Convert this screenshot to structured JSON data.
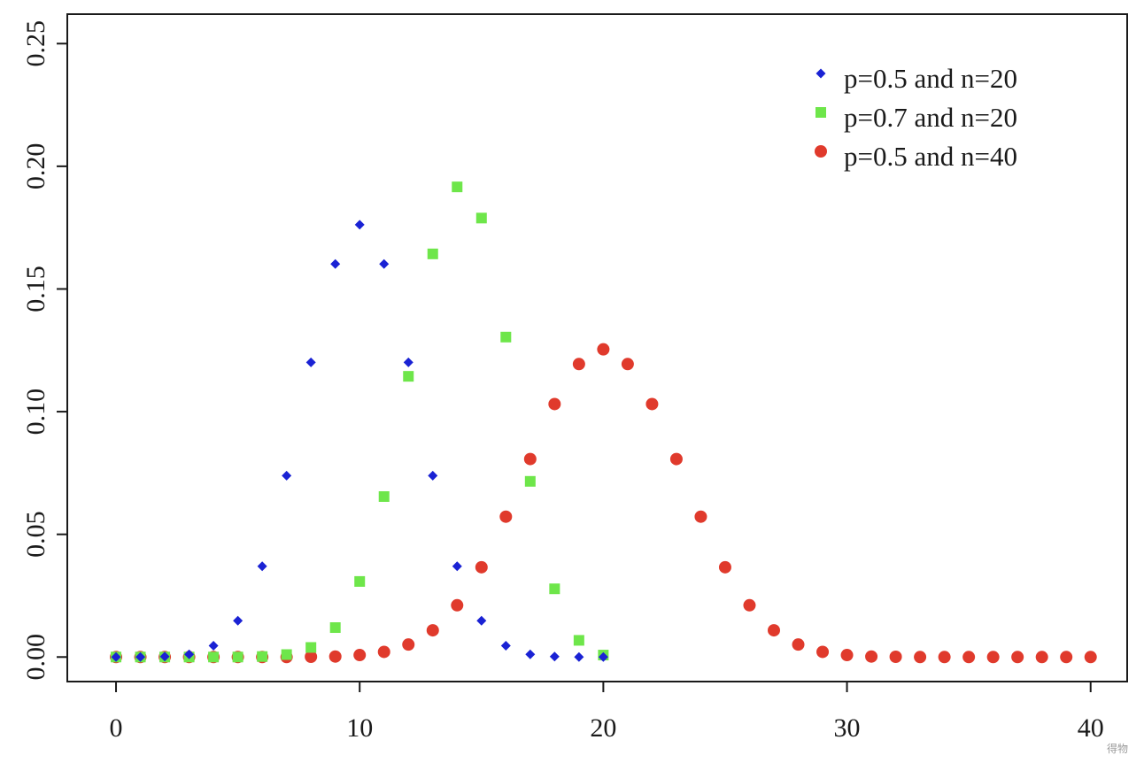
{
  "chart_data": {
    "type": "scatter",
    "title": "",
    "xlabel": "",
    "ylabel": "",
    "xlim": [
      -2,
      41.5
    ],
    "ylim": [
      -0.01,
      0.262
    ],
    "x_ticks": [
      0,
      10,
      20,
      30,
      40
    ],
    "x_tick_labels": [
      "0",
      "10",
      "20",
      "30",
      "40"
    ],
    "y_ticks": [
      0.0,
      0.05,
      0.1,
      0.15,
      0.2,
      0.25
    ],
    "y_tick_labels": [
      "0.00",
      "0.05",
      "0.10",
      "0.15",
      "0.20",
      "0.25"
    ],
    "grid": false,
    "legend_position": "top-right",
    "series": [
      {
        "name": "p=0.5 and n=20",
        "marker": "diamond",
        "color": "#1a22d4",
        "x": [
          0,
          1,
          2,
          3,
          4,
          5,
          6,
          7,
          8,
          9,
          10,
          11,
          12,
          13,
          14,
          15,
          16,
          17,
          18,
          19,
          20
        ],
        "y": [
          0.0,
          0.0,
          0.0002,
          0.0011,
          0.0046,
          0.0148,
          0.037,
          0.0739,
          0.1201,
          0.1602,
          0.1762,
          0.1602,
          0.1201,
          0.0739,
          0.037,
          0.0148,
          0.0046,
          0.0011,
          0.0002,
          0.0,
          0.0
        ]
      },
      {
        "name": "p=0.7 and n=20",
        "marker": "square",
        "color": "#6ee64a",
        "x": [
          0,
          1,
          2,
          3,
          4,
          5,
          6,
          7,
          8,
          9,
          10,
          11,
          12,
          13,
          14,
          15,
          16,
          17,
          18,
          19,
          20
        ],
        "y": [
          0.0,
          0.0,
          0.0,
          0.0,
          0.0,
          0.0,
          0.0002,
          0.001,
          0.0039,
          0.012,
          0.0308,
          0.0654,
          0.1144,
          0.1643,
          0.1916,
          0.1789,
          0.1304,
          0.0716,
          0.0278,
          0.0068,
          0.0008
        ]
      },
      {
        "name": "p=0.5 and n=40",
        "marker": "circle",
        "color": "#e03a2c",
        "x": [
          0,
          1,
          2,
          3,
          4,
          5,
          6,
          7,
          8,
          9,
          10,
          11,
          12,
          13,
          14,
          15,
          16,
          17,
          18,
          19,
          20,
          21,
          22,
          23,
          24,
          25,
          26,
          27,
          28,
          29,
          30,
          31,
          32,
          33,
          34,
          35,
          36,
          37,
          38,
          39,
          40
        ],
        "y": [
          0.0,
          0.0,
          0.0,
          0.0,
          0.0,
          0.0,
          0.0,
          0.0,
          0.0001,
          0.0002,
          0.0008,
          0.0021,
          0.0051,
          0.0109,
          0.0211,
          0.0366,
          0.0572,
          0.0807,
          0.1031,
          0.1194,
          0.1254,
          0.1194,
          0.1031,
          0.0807,
          0.0572,
          0.0366,
          0.0211,
          0.0109,
          0.0051,
          0.0021,
          0.0008,
          0.0002,
          0.0001,
          0.0,
          0.0,
          0.0,
          0.0,
          0.0,
          0.0,
          0.0,
          0.0
        ]
      }
    ]
  },
  "watermark": "得物"
}
